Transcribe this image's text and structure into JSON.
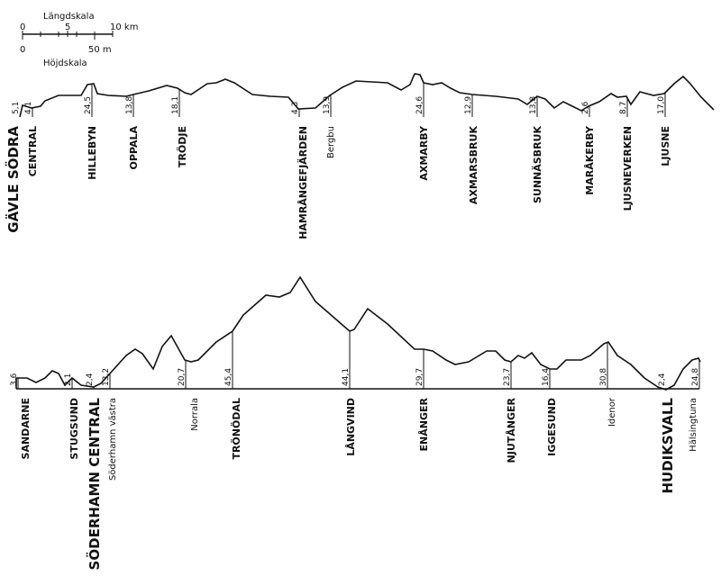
{
  "scale": {
    "length_title": "Längdskala",
    "length_ticks": [
      "0",
      "5",
      "10 km"
    ],
    "height_ticks": [
      "0",
      "50 m"
    ],
    "height_title": "Höjdskala"
  },
  "profiles": [
    {
      "stations": [
        {
          "name": "GÄVLE SÖDRA",
          "distance": "5,1"
        },
        {
          "name": "CENTRAL",
          "distance": "4,1"
        },
        {
          "name": "HILLEBYN",
          "distance": "24,5"
        },
        {
          "name": "OPPALA",
          "distance": "13,8"
        },
        {
          "name": "TRÖDJE",
          "distance": "18,1"
        },
        {
          "name": "HAMRÅNGEFJÄRDEN",
          "distance": "4,3"
        },
        {
          "name": "Bergbu",
          "distance": "13,9"
        },
        {
          "name": "AXMARBY",
          "distance": "24,6"
        },
        {
          "name": "AXMARSBRUK",
          "distance": "12,9"
        },
        {
          "name": "SUNNÄSBRUK",
          "distance": "13,8"
        },
        {
          "name": "MARÅKERBY",
          "distance": "2,6"
        },
        {
          "name": "LJUSNEVERKEN",
          "distance": "8,7"
        },
        {
          "name": "LJUSNE",
          "distance": "17,0"
        }
      ]
    },
    {
      "stations": [
        {
          "name": "SANDARNE",
          "distance": "3,6"
        },
        {
          "name": "STUGSUND",
          "distance": "2,1"
        },
        {
          "name": "SÖDERHAMN CENTRAL",
          "distance": "2,4"
        },
        {
          "name": "Söderhamn västra",
          "distance": "13,2"
        },
        {
          "name": "Norrala",
          "distance": "20,7"
        },
        {
          "name": "TRÖNÖDAL",
          "distance": "45,4"
        },
        {
          "name": "LÅNGVIND",
          "distance": "44,1"
        },
        {
          "name": "ENÅNGER",
          "distance": "29,7"
        },
        {
          "name": "NJUTÅNGER",
          "distance": "23,7"
        },
        {
          "name": "IGGESUND",
          "distance": "16,4"
        },
        {
          "name": "Idenor",
          "distance": "30,8"
        },
        {
          "name": "HUDIKSVALL",
          "distance": "2,4"
        },
        {
          "name": "Hälsingtuna",
          "distance": "24,8"
        }
      ]
    }
  ]
}
